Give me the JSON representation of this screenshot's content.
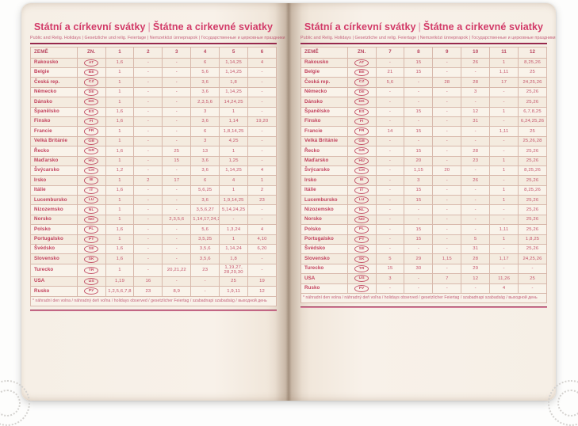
{
  "header": {
    "title_cz": "Státní a církevní svátky",
    "title_sk": "Štátne a cirkevné sviatky",
    "divider": "|",
    "subtitle": "Public and Relig. Holidays | Gesetzliche und relig. Feiertage | Nemzetközi ünnepnapok | Государственные и церковные праздники"
  },
  "table": {
    "col_country": "ZEMĚ",
    "col_code": "ZN.",
    "left_months": [
      "1",
      "2",
      "3",
      "4",
      "5",
      "6"
    ],
    "right_months": [
      "7",
      "8",
      "9",
      "10",
      "11",
      "12"
    ],
    "footnote": "* náhradní den volna / náhradný deň voľna / holidays observed / gesetzlicher Feiertag / szabadnapi szabadság / выходной день",
    "rows": [
      {
        "country": "Rakousko",
        "code": "AT",
        "left": [
          "1,6",
          "-",
          "-",
          "6",
          "1,14,25",
          "4"
        ],
        "right": [
          "-",
          "15",
          "-",
          "26",
          "1",
          "8,25,26"
        ]
      },
      {
        "country": "Belgie",
        "code": "BE",
        "left": [
          "1",
          "-",
          "-",
          "5,6",
          "1,14,25",
          "-"
        ],
        "right": [
          "21",
          "15",
          "-",
          "-",
          "1,11",
          "25"
        ]
      },
      {
        "country": "Česká rep.",
        "code": "CZ",
        "left": [
          "1",
          "-",
          "-",
          "3,6",
          "1,8",
          "-"
        ],
        "right": [
          "5,6",
          "-",
          "28",
          "28",
          "17",
          "24,25,26"
        ]
      },
      {
        "country": "Německo",
        "code": "DE",
        "left": [
          "1",
          "-",
          "-",
          "3,6",
          "1,14,25",
          "-"
        ],
        "right": [
          "-",
          "-",
          "-",
          "3",
          "-",
          "25,26"
        ]
      },
      {
        "country": "Dánsko",
        "code": "DK",
        "left": [
          "1",
          "-",
          "-",
          "2,3,5,6",
          "14,24,25",
          "-"
        ],
        "right": [
          "-",
          "-",
          "-",
          "-",
          "-",
          "25,26"
        ]
      },
      {
        "country": "Španělsko",
        "code": "ES",
        "left": [
          "1,6",
          "-",
          "-",
          "3",
          "1",
          "-"
        ],
        "right": [
          "-",
          "15",
          "-",
          "12",
          "1",
          "6,7,8,25"
        ]
      },
      {
        "country": "Finsko",
        "code": "FI",
        "left": [
          "1,6",
          "-",
          "-",
          "3,6",
          "1,14",
          "19,20"
        ],
        "right": [
          "-",
          "-",
          "-",
          "31",
          "-",
          "6,24,25,26"
        ]
      },
      {
        "country": "Francie",
        "code": "FR",
        "left": [
          "1",
          "-",
          "-",
          "6",
          "1,8,14,25",
          "-"
        ],
        "right": [
          "14",
          "15",
          "-",
          "-",
          "1,11",
          "25"
        ]
      },
      {
        "country": "Velká Británie",
        "code": "GB",
        "left": [
          "1",
          "-",
          "-",
          "3",
          "4,25",
          "-"
        ],
        "right": [
          "-",
          "-",
          "-",
          "-",
          "-",
          "25,26,28"
        ]
      },
      {
        "country": "Řecko",
        "code": "GR",
        "left": [
          "1,6",
          "-",
          "25",
          "13",
          "1",
          "-"
        ],
        "right": [
          "-",
          "15",
          "-",
          "28",
          "-",
          "25,26"
        ]
      },
      {
        "country": "Maďarsko",
        "code": "HU",
        "left": [
          "1",
          "-",
          "15",
          "3,6",
          "1,25",
          "-"
        ],
        "right": [
          "-",
          "20",
          "-",
          "23",
          "1",
          "25,26"
        ]
      },
      {
        "country": "Švýcarsko",
        "code": "CH",
        "left": [
          "1,2",
          "-",
          "-",
          "3,6",
          "1,14,25",
          "4"
        ],
        "right": [
          "-",
          "1,15",
          "20",
          "-",
          "1",
          "8,25,26"
        ]
      },
      {
        "country": "Irsko",
        "code": "IE",
        "left": [
          "1",
          "2",
          "17",
          "6",
          "4",
          "1"
        ],
        "right": [
          "-",
          "3",
          "-",
          "26",
          "-",
          "25,26"
        ]
      },
      {
        "country": "Itálie",
        "code": "IT",
        "left": [
          "1,6",
          "-",
          "-",
          "5,6,25",
          "1",
          "2"
        ],
        "right": [
          "-",
          "15",
          "-",
          "-",
          "1",
          "8,25,26"
        ]
      },
      {
        "country": "Lucembursko",
        "code": "LU",
        "left": [
          "1",
          "-",
          "-",
          "3,6",
          "1,9,14,25",
          "23"
        ],
        "right": [
          "-",
          "15",
          "-",
          "-",
          "1",
          "25,26"
        ]
      },
      {
        "country": "Nizozemsko",
        "code": "NL",
        "left": [
          "1",
          "-",
          "-",
          "3,5,6,27",
          "5,14,24,25",
          "-"
        ],
        "right": [
          "-",
          "-",
          "-",
          "-",
          "-",
          "25,26"
        ]
      },
      {
        "country": "Norsko",
        "code": "NO",
        "left": [
          "1",
          "-",
          "2,3,5,6",
          "1,14,17,24,25",
          "-",
          "-"
        ],
        "right": [
          "-",
          "-",
          "-",
          "-",
          "-",
          "25,26"
        ]
      },
      {
        "country": "Polsko",
        "code": "PL",
        "left": [
          "1,6",
          "-",
          "-",
          "5,6",
          "1,3,24",
          "4"
        ],
        "right": [
          "-",
          "15",
          "-",
          "-",
          "1,11",
          "25,26"
        ]
      },
      {
        "country": "Portugalsko",
        "code": "PT",
        "left": [
          "1",
          "-",
          "-",
          "3,5,25",
          "1",
          "4,10"
        ],
        "right": [
          "-",
          "15",
          "-",
          "5",
          "1",
          "1,8,25"
        ]
      },
      {
        "country": "Švédsko",
        "code": "SE",
        "left": [
          "1,6",
          "-",
          "-",
          "3,5,6",
          "1,14,24",
          "6,20"
        ],
        "right": [
          "-",
          "-",
          "-",
          "31",
          "-",
          "25,26"
        ]
      },
      {
        "country": "Slovensko",
        "code": "SK",
        "left": [
          "1,6",
          "-",
          "-",
          "3,5,6",
          "1,8",
          "-"
        ],
        "right": [
          "5",
          "29",
          "1,15",
          "28",
          "1,17",
          "24,25,26"
        ]
      },
      {
        "country": "Turecko",
        "code": "TR",
        "left": [
          "1",
          "-",
          "20,21,22",
          "23",
          "1,19,27, 28,29,30",
          "-"
        ],
        "right": [
          "15",
          "30",
          "-",
          "29",
          "-",
          "-"
        ]
      },
      {
        "country": "USA",
        "code": "US",
        "left": [
          "1,19",
          "16",
          "-",
          "-",
          "25",
          "19"
        ],
        "right": [
          "3",
          "-",
          "7",
          "12",
          "11,26",
          "25"
        ]
      },
      {
        "country": "Rusko",
        "code": "РУ",
        "left": [
          "1,2,5,6,7,8",
          "23",
          "8,9",
          "-",
          "1,9,11",
          "12"
        ],
        "right": [
          "-",
          "-",
          "-",
          "-",
          "4",
          "-"
        ]
      }
    ]
  }
}
